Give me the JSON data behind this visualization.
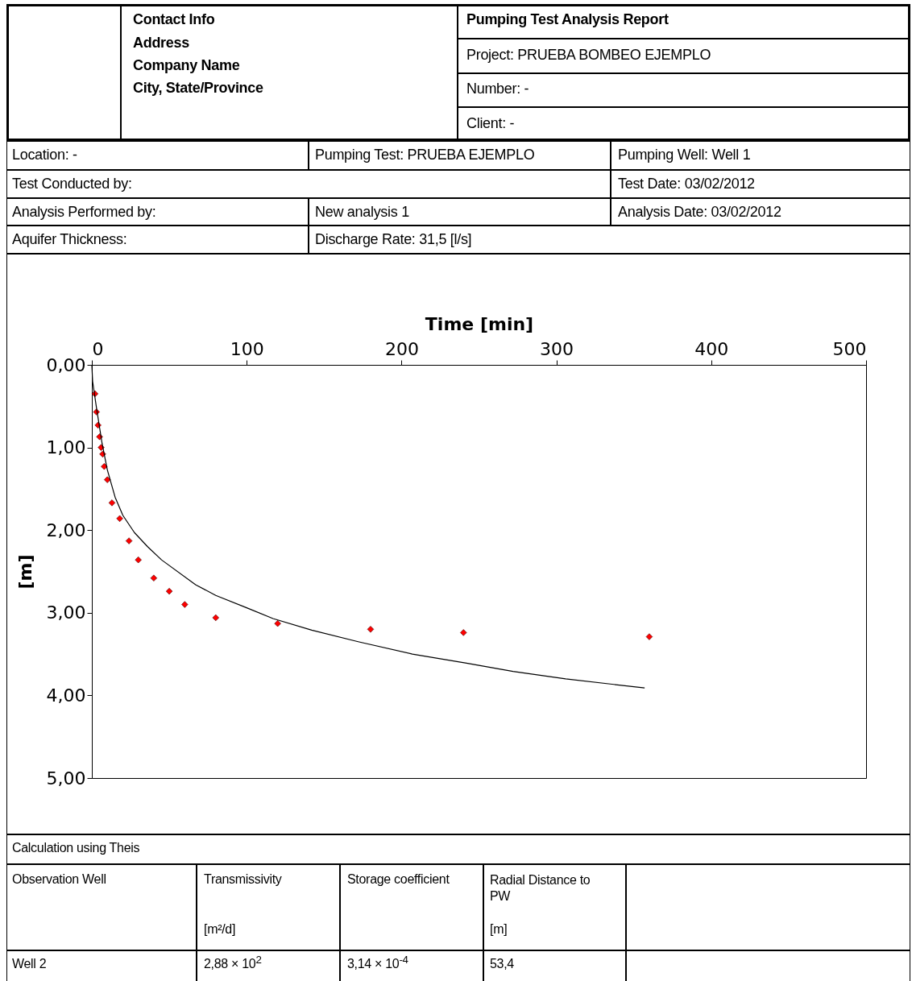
{
  "chart_data": {
    "type": "scatter",
    "title": "Pumping Test Analysis Report",
    "xlabel": "Time [min]",
    "ylabel": "[m]",
    "xlim": [
      0,
      500
    ],
    "xticks": [
      0,
      100,
      200,
      300,
      400,
      500
    ],
    "ylim": [
      5,
      0
    ],
    "yticks": [
      {
        "value": 0,
        "label": "0,00"
      },
      {
        "value": 1,
        "label": "1,00"
      },
      {
        "value": 2,
        "label": "2,00"
      },
      {
        "value": 3,
        "label": "3,00"
      },
      {
        "value": 4,
        "label": "4,00"
      },
      {
        "value": 5,
        "label": "5,00"
      }
    ],
    "series": [
      {
        "type": "scatter",
        "marker": "diamond",
        "color": "#ff0000",
        "x": [
          2,
          3,
          4,
          5,
          6,
          7,
          8,
          10,
          13,
          18,
          24,
          30,
          40,
          50,
          60,
          80,
          120,
          180,
          240,
          360
        ],
        "values": [
          0.35,
          0.57,
          0.73,
          0.87,
          1.0,
          1.08,
          1.23,
          1.39,
          1.67,
          1.86,
          2.13,
          2.36,
          2.58,
          2.74,
          2.9,
          3.06,
          3.13,
          3.2,
          3.24,
          3.29
        ]
      },
      {
        "type": "line",
        "marker": "none",
        "color": "#000000",
        "x": [
          0,
          0.5,
          3,
          6.6,
          10,
          15,
          20,
          27.5,
          36,
          45,
          67,
          80,
          100,
          117,
          142,
          172,
          207,
          242,
          272,
          306,
          357
        ],
        "values": [
          0,
          0.2,
          0.52,
          0.95,
          1.27,
          1.6,
          1.82,
          2.03,
          2.2,
          2.36,
          2.66,
          2.79,
          2.94,
          3.07,
          3.21,
          3.35,
          3.5,
          3.61,
          3.71,
          3.8,
          3.91
        ]
      }
    ],
    "annotations": [
      "Contact Info",
      "Address",
      "Company Name",
      "City, State/Province",
      "Project:  PRUEBA BOMBEO EJEMPLO",
      "Number: -",
      "Client:   -",
      "Location: -",
      "Pumping Test: PRUEBA EJEMPLO",
      "Pumping Well: Well 1",
      "Test Conducted by:",
      "Test Date: 03/02/2012",
      "Analysis Performed by:",
      "New analysis 1",
      "Analysis Date: 03/02/2012",
      "Aquifer Thickness:",
      "Discharge Rate: 31,5 [l/s]",
      "Calculation using Theis",
      "Observation Well",
      "Transmissivity",
      "[m²/d]",
      "Storage coefficient",
      "Radial Distance to PW",
      "[m]",
      "Well 2",
      "2,88 × 10$^{2}$",
      "3,14 × 10$^{-4}$",
      "53,4"
    ]
  }
}
